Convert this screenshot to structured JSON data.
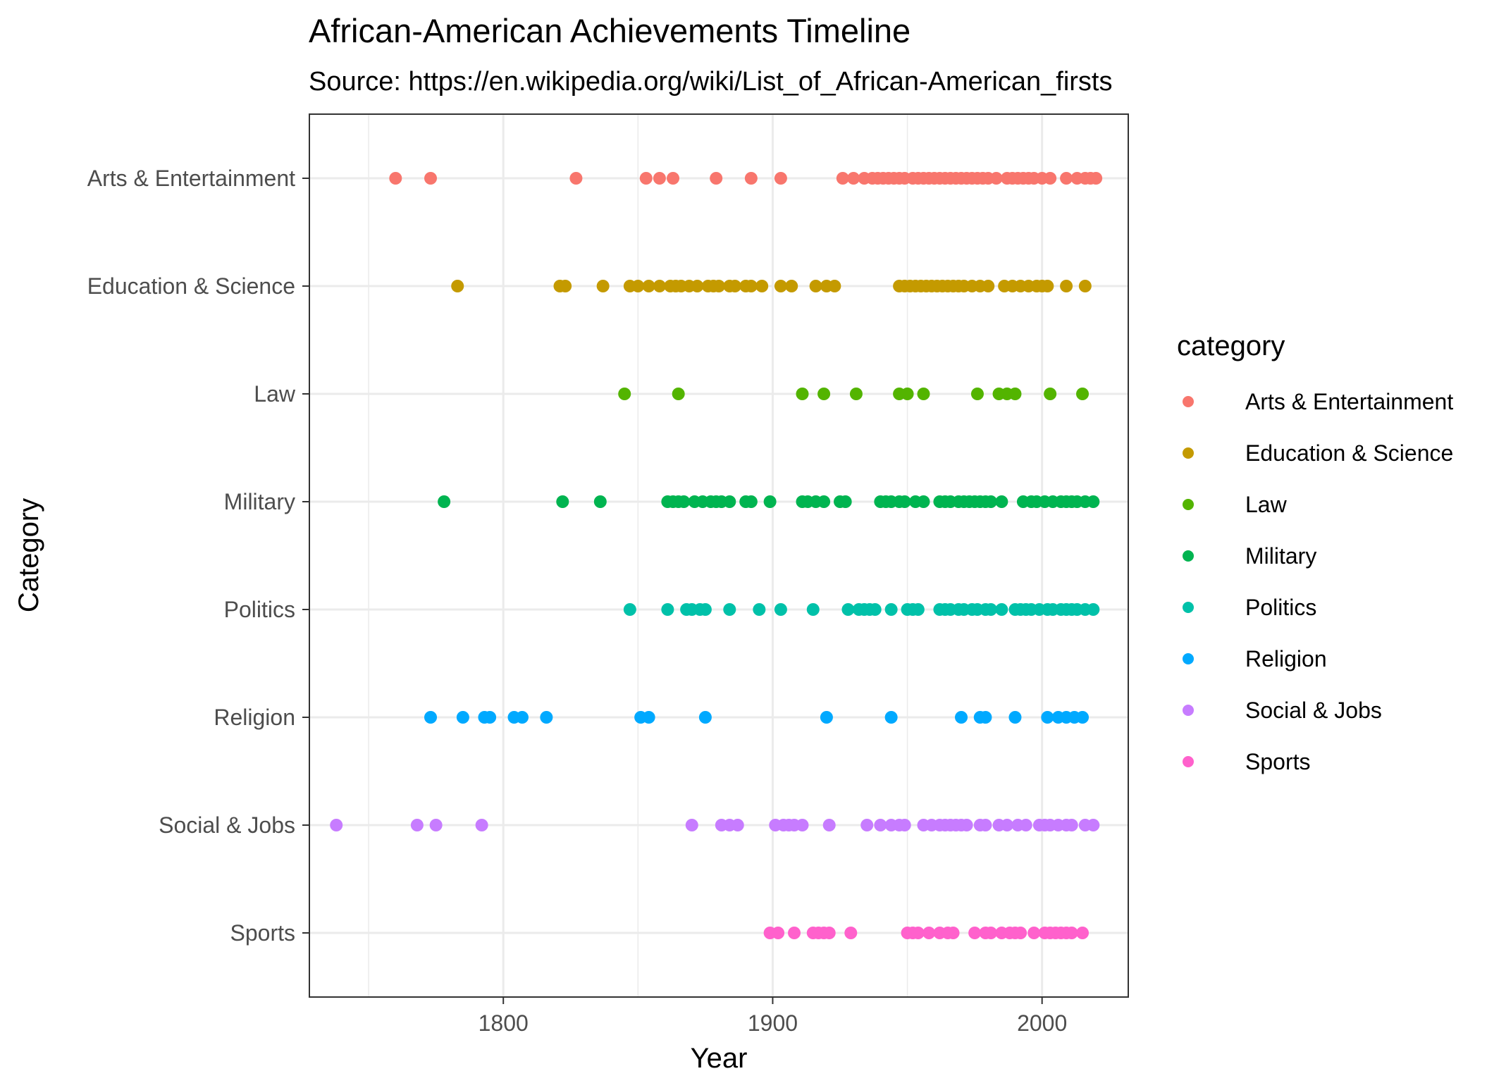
{
  "chart_data": {
    "type": "scatter",
    "title": "African-American Achievements Timeline",
    "subtitle": "Source: https://en.wikipedia.org/wiki/List_of_African-American_firsts",
    "xlabel": "Year",
    "ylabel": "Category",
    "xlim": [
      1728,
      2032
    ],
    "x_ticks": [
      1800,
      1900,
      2000
    ],
    "categories": [
      "Arts & Entertainment",
      "Education & Science",
      "Law",
      "Military",
      "Politics",
      "Religion",
      "Social & Jobs",
      "Sports"
    ],
    "grid": true,
    "legend": {
      "title": "category",
      "position": "right"
    },
    "series": [
      {
        "name": "Arts & Entertainment",
        "color": "#F8766D",
        "x": [
          1760,
          1773,
          1827,
          1853,
          1858,
          1863,
          1879,
          1892,
          1903,
          1926,
          1930,
          1934,
          1937,
          1939,
          1941,
          1943,
          1945,
          1947,
          1949,
          1952,
          1954,
          1956,
          1958,
          1960,
          1962,
          1964,
          1966,
          1968,
          1970,
          1972,
          1974,
          1976,
          1978,
          1980,
          1983,
          1987,
          1989,
          1991,
          1993,
          1995,
          1997,
          2000,
          2003,
          2009,
          2013,
          2016,
          2018,
          2020
        ]
      },
      {
        "name": "Education & Science",
        "color": "#C49A00",
        "x": [
          1783,
          1821,
          1823,
          1837,
          1847,
          1850,
          1854,
          1858,
          1862,
          1864,
          1866,
          1869,
          1872,
          1876,
          1878,
          1880,
          1884,
          1886,
          1890,
          1892,
          1896,
          1903,
          1907,
          1916,
          1920,
          1923,
          1947,
          1949,
          1951,
          1953,
          1955,
          1957,
          1959,
          1961,
          1963,
          1965,
          1967,
          1969,
          1971,
          1974,
          1977,
          1980,
          1986,
          1989,
          1992,
          1995,
          1998,
          2000,
          2002,
          2009,
          2016
        ]
      },
      {
        "name": "Law",
        "color": "#53B400",
        "x": [
          1845,
          1865,
          1911,
          1919,
          1931,
          1947,
          1950,
          1956,
          1976,
          1984,
          1987,
          1990,
          2003,
          2015
        ]
      },
      {
        "name": "Military",
        "color": "#00B450",
        "x": [
          1778,
          1822,
          1836,
          1861,
          1863,
          1865,
          1867,
          1871,
          1874,
          1877,
          1879,
          1881,
          1884,
          1890,
          1892,
          1899,
          1911,
          1913,
          1916,
          1919,
          1925,
          1927,
          1940,
          1942,
          1944,
          1947,
          1949,
          1953,
          1956,
          1962,
          1964,
          1966,
          1969,
          1971,
          1973,
          1975,
          1977,
          1979,
          1981,
          1985,
          1993,
          1996,
          1998,
          2001,
          2004,
          2007,
          2009,
          2011,
          2013,
          2016,
          2019
        ]
      },
      {
        "name": "Politics",
        "color": "#00C1A9",
        "x": [
          1847,
          1861,
          1868,
          1870,
          1873,
          1875,
          1884,
          1895,
          1903,
          1915,
          1928,
          1932,
          1934,
          1936,
          1938,
          1944,
          1950,
          1952,
          1954,
          1962,
          1964,
          1966,
          1969,
          1971,
          1974,
          1976,
          1979,
          1981,
          1985,
          1990,
          1992,
          1994,
          1996,
          1999,
          2002,
          2004,
          2007,
          2009,
          2011,
          2013,
          2016,
          2019
        ]
      },
      {
        "name": "Religion",
        "color": "#00A9FF",
        "x": [
          1773,
          1785,
          1793,
          1795,
          1804,
          1807,
          1816,
          1851,
          1854,
          1875,
          1920,
          1944,
          1970,
          1977,
          1979,
          1990,
          2002,
          2006,
          2009,
          2012,
          2015
        ]
      },
      {
        "name": "Social & Jobs",
        "color": "#C77CFF",
        "x": [
          1738,
          1768,
          1775,
          1792,
          1870,
          1881,
          1884,
          1887,
          1901,
          1904,
          1906,
          1908,
          1911,
          1921,
          1935,
          1940,
          1944,
          1947,
          1949,
          1956,
          1959,
          1962,
          1964,
          1966,
          1968,
          1970,
          1972,
          1977,
          1979,
          1984,
          1987,
          1991,
          1994,
          1999,
          2001,
          2003,
          2006,
          2009,
          2011,
          2016,
          2019
        ]
      },
      {
        "name": "Sports",
        "color": "#FF61CC",
        "x": [
          1899,
          1902,
          1908,
          1915,
          1917,
          1919,
          1921,
          1929,
          1950,
          1952,
          1954,
          1958,
          1962,
          1965,
          1967,
          1975,
          1979,
          1981,
          1985,
          1988,
          1990,
          1992,
          1997,
          2001,
          2003,
          2005,
          2007,
          2009,
          2011,
          2015
        ]
      }
    ]
  }
}
